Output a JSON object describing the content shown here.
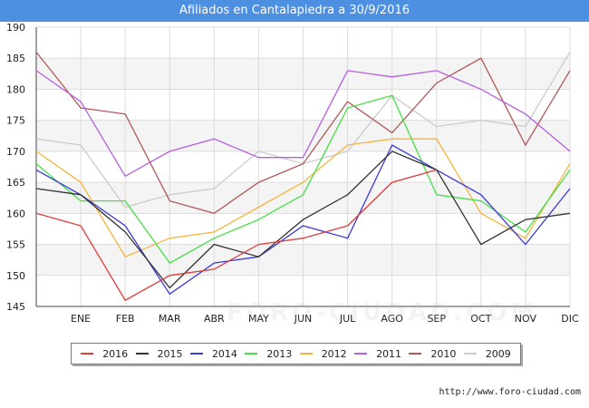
{
  "title": "Afiliados en Cantalapiedra a 30/9/2016",
  "watermark": "FORO-CIUDAD.COM",
  "source": "http://www.foro-ciudad.com",
  "chart_data": {
    "type": "line",
    "categories": [
      "",
      "ENE",
      "FEB",
      "MAR",
      "ABR",
      "MAY",
      "JUN",
      "JUL",
      "AGO",
      "SEP",
      "OCT",
      "NOV",
      "DIC"
    ],
    "ylim": [
      145,
      190
    ],
    "yticks": [
      145,
      150,
      155,
      160,
      165,
      170,
      175,
      180,
      185,
      190
    ],
    "grid": true,
    "legend_placement": "bottom",
    "series": [
      {
        "name": "2016",
        "color": "#e03b3b",
        "values": [
          160,
          158,
          146,
          150,
          151,
          155,
          156,
          158,
          165,
          167,
          null,
          null,
          null
        ]
      },
      {
        "name": "2015",
        "color": "#333333",
        "values": [
          164,
          163,
          157,
          148,
          155,
          153,
          159,
          163,
          170,
          167,
          155,
          159,
          160
        ]
      },
      {
        "name": "2014",
        "color": "#3a3ad8",
        "values": [
          167,
          163,
          158,
          147,
          152,
          153,
          158,
          156,
          171,
          167,
          163,
          155,
          164
        ]
      },
      {
        "name": "2013",
        "color": "#44e044",
        "values": [
          168,
          162,
          162,
          152,
          156,
          159,
          163,
          177,
          179,
          163,
          162,
          157,
          167
        ]
      },
      {
        "name": "2012",
        "color": "#f5b43c",
        "values": [
          170,
          165,
          153,
          156,
          157,
          161,
          165,
          171,
          172,
          172,
          160,
          156,
          168
        ]
      },
      {
        "name": "2011",
        "color": "#b65fe0",
        "values": [
          183,
          178,
          166,
          170,
          172,
          169,
          169,
          183,
          182,
          183,
          180,
          176,
          170
        ]
      },
      {
        "name": "2010",
        "color": "#b05858",
        "values": [
          186,
          177,
          176,
          162,
          160,
          165,
          168,
          178,
          173,
          181,
          185,
          171,
          183
        ]
      },
      {
        "name": "2009",
        "color": "#cccccc",
        "values": [
          172,
          171,
          161,
          163,
          164,
          170,
          168,
          170,
          179,
          174,
          175,
          174,
          186
        ]
      }
    ]
  }
}
